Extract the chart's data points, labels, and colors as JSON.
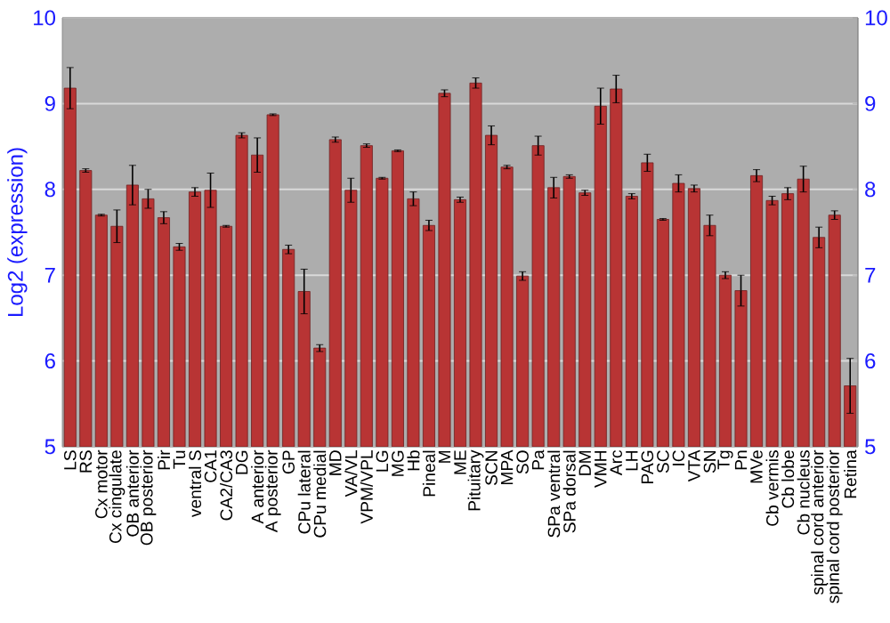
{
  "chart_data": {
    "type": "bar",
    "ylabel": "Log2 (expression)",
    "categories": [
      "LS",
      "RS",
      "Cx motor",
      "Cx cingulate",
      "OB anterior",
      "OB posterior",
      "Pir",
      "Tu",
      "ventral S",
      "CA1",
      "CA2/CA3",
      "DG",
      "A anterior",
      "A posterior",
      "GP",
      "CPu lateral",
      "CPu medial",
      "MD",
      "VA/VL",
      "VPM/VPL",
      "LG",
      "MG",
      "Hb",
      "Pineal",
      "M",
      "ME",
      "Pituitary",
      "SCN",
      "MPA",
      "SO",
      "Pa",
      "SPa ventral",
      "SPa dorsal",
      "DM",
      "VMH",
      "Arc",
      "LH",
      "PAG",
      "SC",
      "IC",
      "VTA",
      "SN",
      "Tg",
      "Pn",
      "MVe",
      "Cb vermis",
      "Cb lobe",
      "Cb nucleus",
      "spinal cord anterior",
      "spinal cord posterior",
      "Retina"
    ],
    "values": [
      9.18,
      8.22,
      7.7,
      7.57,
      8.05,
      7.89,
      7.67,
      7.33,
      7.97,
      7.99,
      7.57,
      8.63,
      8.4,
      8.87,
      7.3,
      6.81,
      6.15,
      8.58,
      7.99,
      8.51,
      8.13,
      8.45,
      7.89,
      7.58,
      9.12,
      7.88,
      9.24,
      8.63,
      8.26,
      6.99,
      8.51,
      8.02,
      8.15,
      7.96,
      8.97,
      9.17,
      7.92,
      8.31,
      7.65,
      8.07,
      8.01,
      7.58,
      7.0,
      6.82,
      8.16,
      7.87,
      7.95,
      8.12,
      7.44,
      7.7,
      5.71
    ],
    "errors": [
      0.24,
      0.02,
      0.01,
      0.19,
      0.23,
      0.11,
      0.07,
      0.04,
      0.05,
      0.2,
      0.01,
      0.03,
      0.2,
      0.01,
      0.05,
      0.26,
      0.04,
      0.03,
      0.14,
      0.02,
      0.01,
      0.01,
      0.08,
      0.06,
      0.04,
      0.03,
      0.06,
      0.11,
      0.02,
      0.05,
      0.11,
      0.12,
      0.02,
      0.03,
      0.21,
      0.16,
      0.03,
      0.1,
      0.01,
      0.1,
      0.04,
      0.12,
      0.04,
      0.18,
      0.07,
      0.05,
      0.07,
      0.15,
      0.12,
      0.05,
      0.32
    ],
    "color": "#b83434",
    "ylim": [
      5,
      10
    ],
    "yticks": [
      5,
      6,
      7,
      8,
      9,
      10
    ],
    "y2lim": [
      5,
      10
    ],
    "y2ticks": [
      5,
      6,
      7,
      8,
      9,
      10
    ],
    "grid": "y"
  }
}
